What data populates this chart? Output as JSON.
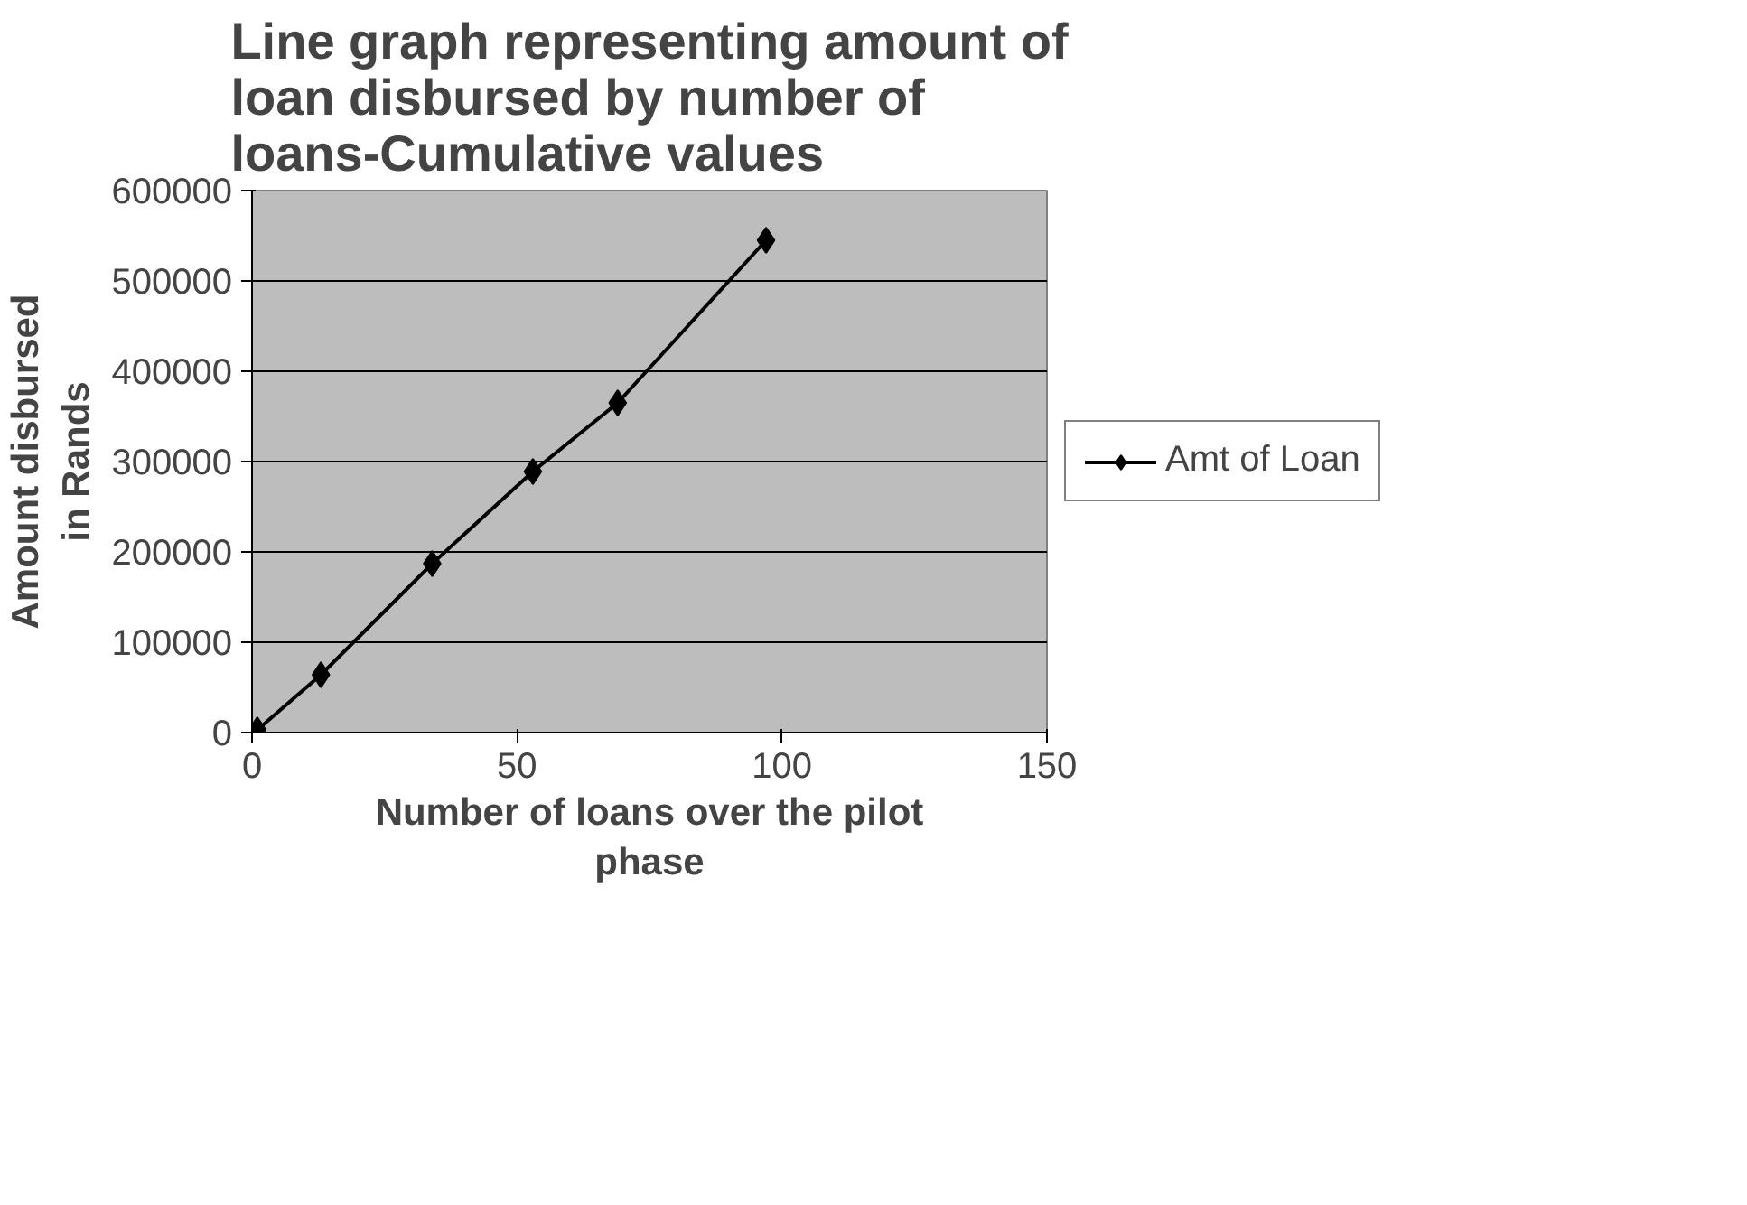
{
  "chart_data": {
    "type": "line",
    "title": "Line graph representing amount of loan disbursed by number of loans-Cumulative values",
    "xlabel": "Number of loans over the pilot phase",
    "ylabel": "Amount disbursed in Rands",
    "x": [
      1,
      13,
      34,
      53,
      69,
      97
    ],
    "series": [
      {
        "name": "Amt of Loan",
        "color": "#000000",
        "values": [
          3000,
          64000,
          187000,
          289000,
          365000,
          545000
        ]
      }
    ],
    "xlim": [
      0,
      150
    ],
    "xticks": [
      0,
      50,
      100,
      150
    ],
    "ylim": [
      0,
      600000
    ],
    "yticks": [
      0,
      100000,
      200000,
      300000,
      400000,
      500000,
      600000
    ],
    "grid": "y",
    "legend": "right",
    "marker": "diamond",
    "line_style": "solid"
  }
}
